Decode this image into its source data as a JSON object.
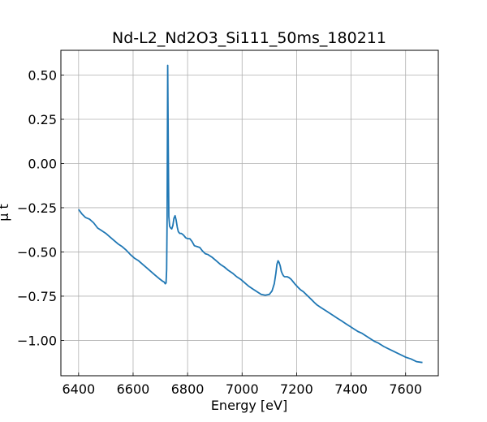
{
  "chart_data": {
    "type": "line",
    "title": "Nd-L2_Nd2O3_Si111_50ms_180211",
    "xlabel": "Energy [eV]",
    "ylabel": "μ t",
    "xlim": [
      6335,
      7720
    ],
    "ylim": [
      -1.2,
      0.64
    ],
    "xticks": [
      6400,
      6600,
      6800,
      7000,
      7200,
      7400,
      7600
    ],
    "yticks": [
      0.5,
      0.25,
      0.0,
      -0.25,
      -0.5,
      -0.75,
      -1.0
    ],
    "xtick_labels": [
      "6400",
      "6600",
      "6800",
      "7000",
      "7200",
      "7400",
      "7600"
    ],
    "ytick_labels": [
      "0.50",
      "0.25",
      "0.00",
      "−0.25",
      "−0.50",
      "−0.75",
      "−1.00"
    ],
    "grid": true,
    "color": "#1f77b4",
    "series": [
      {
        "x": [
          6400,
          6412,
          6425,
          6440,
          6455,
          6470,
          6485,
          6500,
          6515,
          6530,
          6545,
          6560,
          6575,
          6590,
          6605,
          6620,
          6635,
          6650,
          6665,
          6680,
          6695,
          6708,
          6714,
          6718,
          6721,
          6723,
          6725,
          6727,
          6729,
          6731,
          6734,
          6738,
          6742,
          6746,
          6750,
          6754,
          6758,
          6762,
          6766,
          6771,
          6777,
          6785,
          6793,
          6800,
          6808,
          6816,
          6825,
          6835,
          6845,
          6855,
          6865,
          6875,
          6890,
          6905,
          6920,
          6935,
          6950,
          6965,
          6980,
          6995,
          7010,
          7025,
          7040,
          7055,
          7070,
          7085,
          7100,
          7110,
          7118,
          7124,
          7128,
          7132,
          7136,
          7140,
          7144,
          7148,
          7152,
          7156,
          7160,
          7165,
          7172,
          7180,
          7188,
          7196,
          7205,
          7215,
          7225,
          7235,
          7245,
          7255,
          7265,
          7275,
          7290,
          7305,
          7320,
          7335,
          7350,
          7365,
          7380,
          7395,
          7410,
          7425,
          7440,
          7455,
          7470,
          7485,
          7500,
          7520,
          7540,
          7560,
          7580,
          7600,
          7620,
          7640,
          7662
        ],
        "y": [
          -0.26,
          -0.285,
          -0.305,
          -0.315,
          -0.335,
          -0.365,
          -0.38,
          -0.395,
          -0.415,
          -0.435,
          -0.455,
          -0.47,
          -0.49,
          -0.515,
          -0.535,
          -0.55,
          -0.57,
          -0.59,
          -0.61,
          -0.63,
          -0.65,
          -0.665,
          -0.67,
          -0.68,
          -0.675,
          -0.6,
          -0.3,
          0.555,
          0.1,
          -0.3,
          -0.355,
          -0.365,
          -0.37,
          -0.35,
          -0.31,
          -0.295,
          -0.32,
          -0.36,
          -0.385,
          -0.395,
          -0.395,
          -0.405,
          -0.42,
          -0.425,
          -0.425,
          -0.44,
          -0.465,
          -0.47,
          -0.475,
          -0.495,
          -0.51,
          -0.515,
          -0.53,
          -0.55,
          -0.57,
          -0.585,
          -0.605,
          -0.62,
          -0.64,
          -0.655,
          -0.675,
          -0.695,
          -0.71,
          -0.725,
          -0.74,
          -0.745,
          -0.74,
          -0.72,
          -0.68,
          -0.62,
          -0.57,
          -0.55,
          -0.56,
          -0.58,
          -0.61,
          -0.625,
          -0.635,
          -0.64,
          -0.64,
          -0.64,
          -0.645,
          -0.655,
          -0.67,
          -0.685,
          -0.7,
          -0.715,
          -0.725,
          -0.74,
          -0.755,
          -0.77,
          -0.785,
          -0.8,
          -0.815,
          -0.83,
          -0.845,
          -0.86,
          -0.875,
          -0.89,
          -0.905,
          -0.92,
          -0.935,
          -0.95,
          -0.96,
          -0.975,
          -0.99,
          -1.005,
          -1.015,
          -1.035,
          -1.05,
          -1.065,
          -1.08,
          -1.095,
          -1.105,
          -1.12,
          -1.125
        ]
      }
    ]
  }
}
